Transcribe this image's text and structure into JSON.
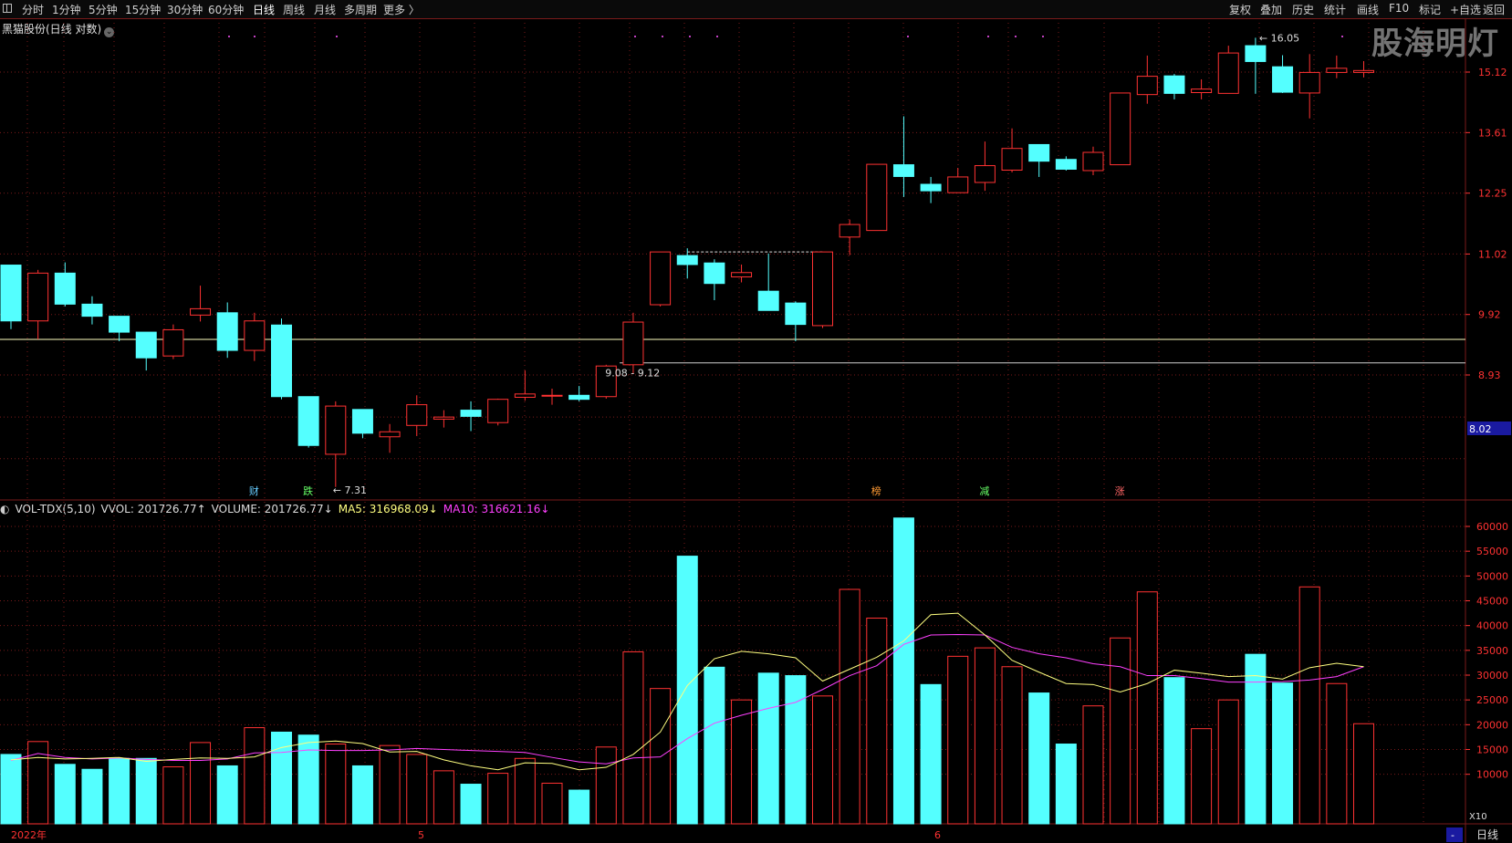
{
  "toolbar": {
    "periods": [
      "分时",
      "1分钟",
      "5分钟",
      "15分钟",
      "30分钟",
      "60分钟",
      "日线",
      "周线",
      "月线",
      "多周期",
      "更多 〉"
    ],
    "active_period": "日线",
    "right_items": [
      "复权",
      "叠加",
      "历史",
      "统计",
      "画线",
      "F10",
      "标记",
      "+自选",
      "返回"
    ]
  },
  "watermark": "股海明灯",
  "stock_title": "黑猫股份(日线 对数)",
  "volume_header": {
    "indicator": "VOL-TDX(5,10)",
    "vvol": "VVOL: 201726.77↑",
    "volume": "VOLUME: 201726.77↓",
    "ma5": "MA5: 316968.09↓",
    "ma10": "MA10: 316621.16↓"
  },
  "colors": {
    "up": "#ff3232",
    "down": "#54ffff",
    "ma5": "#ffff80",
    "ma10": "#ff40ff",
    "grid": "#7a1a1a",
    "hline_yellow": "#ffffc0",
    "hline_white": "#d0d0d0",
    "price_tag_bg": "#1a1aa0"
  },
  "x_axis_labels": {
    "start": "2022年",
    "month5": "5",
    "month6": "6"
  },
  "bottom_right": {
    "arrow": "-",
    "period_label": "日线",
    "vol_unit": "X10"
  },
  "price_tag": "8.02",
  "annotations": {
    "high_label": "16.05",
    "low_label": "7.31",
    "range_label": "9.08 - 9.12",
    "event_markers": [
      {
        "text": "财",
        "bar": 9
      },
      {
        "text": "跌",
        "bar": 11
      },
      {
        "text": "榜",
        "bar": 32
      },
      {
        "text": "减",
        "bar": 36
      },
      {
        "text": "涨",
        "bar": 41
      }
    ]
  },
  "chart_data": [
    {
      "type": "candlestick",
      "title": "黑猫股份(日线 对数)",
      "y_scale": "log",
      "y_ticks": [
        15.12,
        13.61,
        12.25,
        11.02,
        9.92,
        8.93
      ],
      "ylim": [
        7.2,
        16.8
      ],
      "horizontal_lines": [
        9.5,
        9.12
      ],
      "ohlc": [
        [
          10.81,
          10.81,
          9.67,
          9.81
        ],
        [
          9.81,
          10.72,
          9.5,
          10.66
        ],
        [
          10.66,
          10.86,
          10.06,
          10.1
        ],
        [
          10.1,
          10.24,
          9.75,
          9.89
        ],
        [
          9.89,
          9.89,
          9.47,
          9.62
        ],
        [
          9.62,
          9.62,
          9.0,
          9.2
        ],
        [
          9.23,
          9.75,
          9.18,
          9.66
        ],
        [
          9.91,
          10.43,
          9.8,
          10.02
        ],
        [
          9.95,
          10.13,
          9.2,
          9.32
        ],
        [
          9.32,
          9.95,
          9.15,
          9.81
        ],
        [
          9.74,
          9.85,
          8.56,
          8.6
        ],
        [
          8.6,
          8.6,
          7.87,
          7.9
        ],
        [
          7.78,
          8.53,
          7.35,
          8.46
        ],
        [
          8.41,
          8.41,
          8.0,
          8.07
        ],
        [
          8.02,
          8.2,
          7.8,
          8.09
        ],
        [
          8.18,
          8.62,
          8.03,
          8.48
        ],
        [
          8.27,
          8.4,
          8.15,
          8.3
        ],
        [
          8.4,
          8.53,
          8.1,
          8.31
        ],
        [
          8.22,
          8.57,
          8.18,
          8.56
        ],
        [
          8.59,
          9.0,
          8.54,
          8.64
        ],
        [
          8.62,
          8.72,
          8.48,
          8.62
        ],
        [
          8.62,
          8.76,
          8.53,
          8.56
        ],
        [
          8.6,
          9.09,
          8.57,
          9.07
        ],
        [
          9.09,
          9.95,
          8.95,
          9.79
        ],
        [
          10.09,
          11.06,
          10.06,
          11.06
        ],
        [
          10.99,
          11.13,
          10.56,
          10.82
        ],
        [
          10.85,
          10.92,
          10.17,
          10.47
        ],
        [
          10.59,
          10.82,
          10.49,
          10.67
        ],
        [
          10.33,
          11.03,
          9.99,
          9.99
        ],
        [
          10.12,
          10.15,
          9.47,
          9.75
        ],
        [
          9.73,
          11.06,
          9.69,
          11.06
        ],
        [
          11.35,
          11.7,
          11.0,
          11.6
        ],
        [
          11.48,
          12.88,
          11.48,
          12.88
        ],
        [
          12.87,
          14.0,
          12.17,
          12.61
        ],
        [
          12.44,
          12.6,
          12.04,
          12.3
        ],
        [
          12.26,
          12.8,
          12.26,
          12.6
        ],
        [
          12.48,
          13.4,
          12.3,
          12.85
        ],
        [
          12.75,
          13.71,
          12.7,
          13.24
        ],
        [
          13.33,
          13.33,
          12.6,
          12.95
        ],
        [
          12.99,
          13.06,
          12.74,
          12.77
        ],
        [
          12.74,
          13.28,
          12.64,
          13.15
        ],
        [
          12.87,
          14.58,
          12.87,
          14.58
        ],
        [
          14.54,
          15.56,
          14.31,
          15.01
        ],
        [
          15.02,
          15.07,
          14.42,
          14.57
        ],
        [
          14.59,
          14.93,
          14.42,
          14.68
        ],
        [
          14.57,
          15.83,
          14.57,
          15.63
        ],
        [
          15.83,
          16.05,
          14.56,
          15.4
        ],
        [
          15.26,
          15.57,
          14.58,
          14.6
        ],
        [
          14.58,
          15.6,
          13.95,
          15.11
        ],
        [
          15.11,
          15.56,
          14.96,
          15.22
        ],
        [
          15.11,
          15.41,
          14.98,
          15.16
        ]
      ]
    },
    {
      "type": "bar",
      "title": "VOL-TDX(5,10)",
      "unit": "X10",
      "y_ticks": [
        60000,
        55000,
        50000,
        45000,
        40000,
        35000,
        30000,
        25000,
        20000,
        15000,
        10000
      ],
      "ylim": [
        0,
        62500
      ],
      "values": [
        14000,
        16600,
        12000,
        11000,
        13200,
        13200,
        11500,
        16400,
        11700,
        19400,
        18500,
        17900,
        16100,
        11700,
        15800,
        14000,
        10700,
        8000,
        10200,
        13200,
        8200,
        6800,
        15500,
        34700,
        27300,
        54000,
        31600,
        25000,
        30400,
        29900,
        25800,
        47300,
        41500,
        61700,
        28100,
        33800,
        35500,
        31700,
        26400,
        16100,
        23800,
        37500,
        46800,
        29500,
        19200,
        25000,
        34200,
        28400,
        47800,
        28300,
        20200
      ],
      "ma5": [
        12900,
        13400,
        13100,
        13200,
        13400,
        12600,
        13000,
        13300,
        13200,
        13500,
        15400,
        16400,
        16700,
        16200,
        14500,
        14600,
        12900,
        11700,
        10900,
        12300,
        12200,
        10900,
        11400,
        14000,
        18500,
        27900,
        33300,
        34800,
        34300,
        33500,
        28800,
        31200,
        33600,
        36900,
        42200,
        42500,
        38100,
        33000,
        30600,
        28300,
        28100,
        26600,
        28300,
        31000,
        30400,
        29700,
        29900,
        29200,
        31500,
        32400,
        31700
      ],
      "ma10": [
        12800,
        14200,
        13400,
        13100,
        13300,
        13000,
        12800,
        12800,
        13100,
        14300,
        14400,
        14900,
        14800,
        14800,
        14900,
        15200,
        15000,
        14800,
        14600,
        14400,
        13400,
        12500,
        12100,
        13300,
        13500,
        17200,
        20300,
        21900,
        23300,
        24500,
        27100,
        29900,
        31900,
        36200,
        38100,
        38200,
        38100,
        35600,
        34300,
        33500,
        32300,
        31700,
        29900,
        29900,
        29300,
        28600,
        28600,
        28700,
        29000,
        29700,
        31700
      ]
    }
  ]
}
